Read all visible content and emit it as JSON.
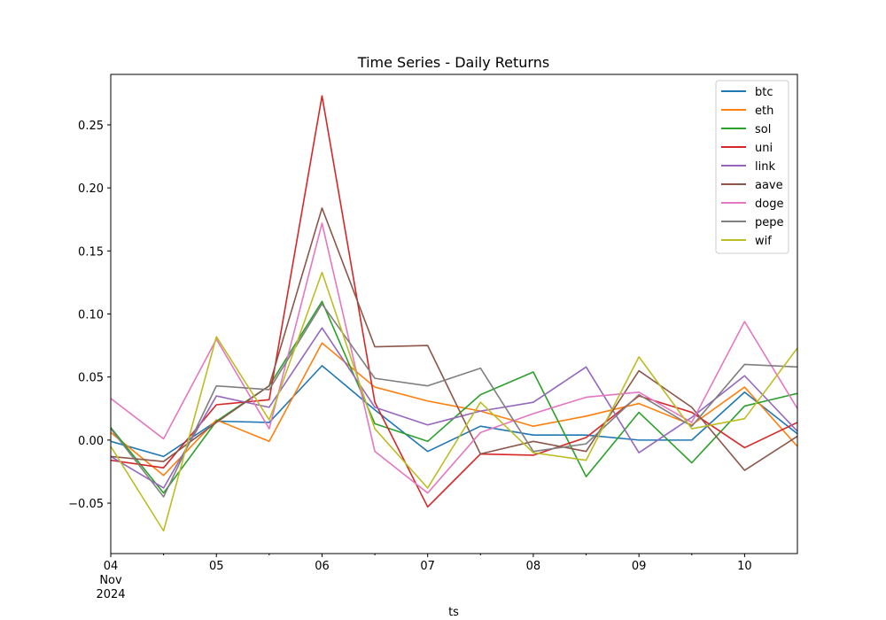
{
  "chart_data": {
    "type": "line",
    "title": "Time Series - Daily Returns",
    "xlabel": "ts",
    "ylabel": "",
    "x": [
      0,
      0.5,
      1,
      1.5,
      2,
      2.5,
      3,
      3.5,
      4,
      4.5,
      5,
      5.5,
      6,
      6.5
    ],
    "xlim": [
      0,
      6.5
    ],
    "ylim": [
      -0.09,
      0.29
    ],
    "x_ticks": [
      {
        "value": 0,
        "label": "04",
        "sub": [
          "Nov",
          "2024"
        ]
      },
      {
        "value": 1,
        "label": "05"
      },
      {
        "value": 2,
        "label": "06"
      },
      {
        "value": 3,
        "label": "07"
      },
      {
        "value": 4,
        "label": "08"
      },
      {
        "value": 5,
        "label": "09"
      },
      {
        "value": 6,
        "label": "10"
      }
    ],
    "y_ticks": [
      {
        "value": -0.05,
        "label": "−0.05"
      },
      {
        "value": 0.0,
        "label": "0.00"
      },
      {
        "value": 0.05,
        "label": "0.05"
      },
      {
        "value": 0.1,
        "label": "0.10"
      },
      {
        "value": 0.15,
        "label": "0.15"
      },
      {
        "value": 0.2,
        "label": "0.20"
      },
      {
        "value": 0.25,
        "label": "0.25"
      }
    ],
    "grid": false,
    "legend_position": "top-right",
    "series": [
      {
        "name": "btc",
        "color": "#1f77b4",
        "values": [
          -0.001,
          -0.013,
          0.015,
          0.014,
          0.059,
          0.024,
          -0.009,
          0.011,
          0.004,
          0.004,
          0.0,
          0.0,
          0.038,
          0.005
        ]
      },
      {
        "name": "eth",
        "color": "#ff7f0e",
        "values": [
          0.006,
          -0.028,
          0.016,
          -0.001,
          0.077,
          0.042,
          0.031,
          0.023,
          0.011,
          0.019,
          0.029,
          0.012,
          0.042,
          -0.005
        ]
      },
      {
        "name": "sol",
        "color": "#2ca02c",
        "values": [
          0.01,
          -0.042,
          0.015,
          0.043,
          0.11,
          0.013,
          -0.001,
          0.036,
          0.054,
          -0.029,
          0.022,
          -0.018,
          0.027,
          0.037
        ]
      },
      {
        "name": "uni",
        "color": "#d62728",
        "values": [
          -0.016,
          -0.022,
          0.028,
          0.032,
          0.273,
          0.03,
          -0.053,
          -0.011,
          -0.012,
          0.002,
          0.035,
          0.022,
          -0.006,
          0.014
        ]
      },
      {
        "name": "link",
        "color": "#9467bd",
        "values": [
          -0.013,
          -0.038,
          0.035,
          0.026,
          0.089,
          0.026,
          0.012,
          0.023,
          0.03,
          0.058,
          -0.01,
          0.018,
          0.051,
          0.007
        ]
      },
      {
        "name": "aave",
        "color": "#8c564b",
        "values": [
          -0.013,
          -0.017,
          0.014,
          0.043,
          0.184,
          0.074,
          0.075,
          -0.011,
          -0.001,
          -0.009,
          0.055,
          0.026,
          -0.024,
          0.003
        ]
      },
      {
        "name": "doge",
        "color": "#e377c2",
        "values": [
          0.033,
          0.001,
          0.08,
          0.009,
          0.172,
          -0.009,
          -0.042,
          0.006,
          0.021,
          0.034,
          0.038,
          0.014,
          0.094,
          0.025
        ]
      },
      {
        "name": "pepe",
        "color": "#7f7f7f",
        "values": [
          0.009,
          -0.045,
          0.043,
          0.04,
          0.108,
          0.049,
          0.043,
          0.057,
          -0.009,
          -0.003,
          0.036,
          0.011,
          0.06,
          0.058
        ]
      },
      {
        "name": "wif",
        "color": "#bcbd22",
        "values": [
          -0.005,
          -0.072,
          0.082,
          0.016,
          0.133,
          0.009,
          -0.038,
          0.03,
          -0.01,
          -0.016,
          0.066,
          0.009,
          0.017,
          0.073
        ]
      }
    ]
  }
}
